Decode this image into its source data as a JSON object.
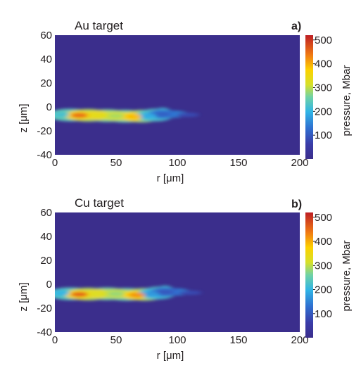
{
  "chart_data": [
    {
      "type": "heatmap",
      "panel_label": "a)",
      "title": "Au target",
      "xlabel": "r [μm]",
      "ylabel": "z [μm]",
      "xlim": [
        0,
        200
      ],
      "ylim": [
        -40,
        60
      ],
      "xticks": [
        "0",
        "50",
        "100",
        "150",
        "200"
      ],
      "yticks": [
        "60",
        "40",
        "20",
        "0",
        "-20",
        "-40"
      ],
      "colorbar": {
        "label": "pressure, Mbar",
        "range": [
          0,
          520
        ],
        "ticks": [
          "500",
          "400",
          "300",
          "200",
          "100"
        ],
        "colormap": "jet"
      },
      "background_color": "#3b2e8c",
      "hot_spots": [
        {
          "r": 5,
          "z": -6.5,
          "pressure": 220
        },
        {
          "r": 20,
          "z": -7,
          "pressure": 450
        },
        {
          "r": 35,
          "z": -7,
          "pressure": 330
        },
        {
          "r": 50,
          "z": -7.5,
          "pressure": 290
        },
        {
          "r": 65,
          "z": -8,
          "pressure": 390
        },
        {
          "r": 77,
          "z": -7.5,
          "pressure": 190
        },
        {
          "r": 88,
          "z": -6,
          "pressure": 110
        }
      ]
    },
    {
      "type": "heatmap",
      "panel_label": "b)",
      "title": "Cu target",
      "xlabel": "r [μm]",
      "ylabel": "z [μm]",
      "xlim": [
        0,
        200
      ],
      "ylim": [
        -40,
        60
      ],
      "xticks": [
        "0",
        "50",
        "100",
        "150",
        "200"
      ],
      "yticks": [
        "60",
        "40",
        "20",
        "0",
        "-20",
        "-40"
      ],
      "colorbar": {
        "label": "pressure, Mbar",
        "range": [
          0,
          520
        ],
        "ticks": [
          "500",
          "400",
          "300",
          "200",
          "100"
        ],
        "colormap": "jet"
      },
      "background_color": "#3b2e8c",
      "hot_spots": [
        {
          "r": 5,
          "z": -7.5,
          "pressure": 200
        },
        {
          "r": 20,
          "z": -8.5,
          "pressure": 460
        },
        {
          "r": 35,
          "z": -8,
          "pressure": 320
        },
        {
          "r": 50,
          "z": -8,
          "pressure": 280
        },
        {
          "r": 67,
          "z": -9,
          "pressure": 420
        },
        {
          "r": 80,
          "z": -8,
          "pressure": 170
        },
        {
          "r": 90,
          "z": -6.5,
          "pressure": 100
        }
      ]
    }
  ]
}
